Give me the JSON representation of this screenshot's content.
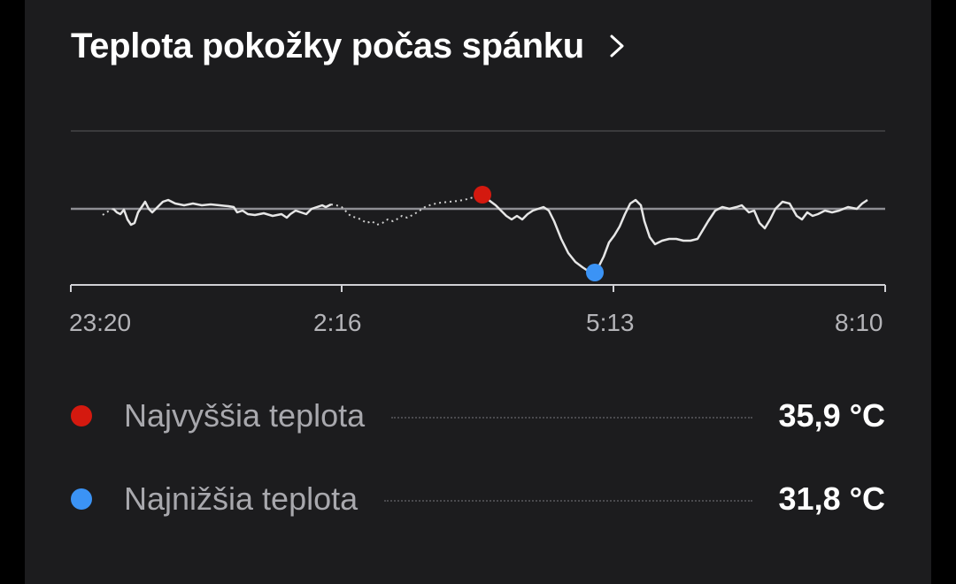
{
  "card": {
    "title": "Teplota pokožky počas spánku",
    "chevron_icon": "chevron-right-icon"
  },
  "chart_data": {
    "type": "line",
    "x_ticks": [
      "23:20",
      "2:16",
      "5:13",
      "8:10"
    ],
    "y_unit": "°C",
    "reference_line": "baseline",
    "highlights": {
      "max": {
        "value": 35.9,
        "color": "#d4190f"
      },
      "min": {
        "value": 31.8,
        "color": "#3b93f5"
      }
    },
    "line_color": "#e6e6e6",
    "grid": true
  },
  "legend": [
    {
      "label": "Najvyššia teplota",
      "value": "35,9 °C",
      "color": "#d4190f"
    },
    {
      "label": "Najnižšia teplota",
      "value": "31,8 °C",
      "color": "#3b93f5"
    }
  ],
  "colors": {
    "background": "#1c1c1e",
    "grid": "#3a3a3c",
    "baseline": "#8e8e93",
    "axis": "#d0d0d4"
  }
}
